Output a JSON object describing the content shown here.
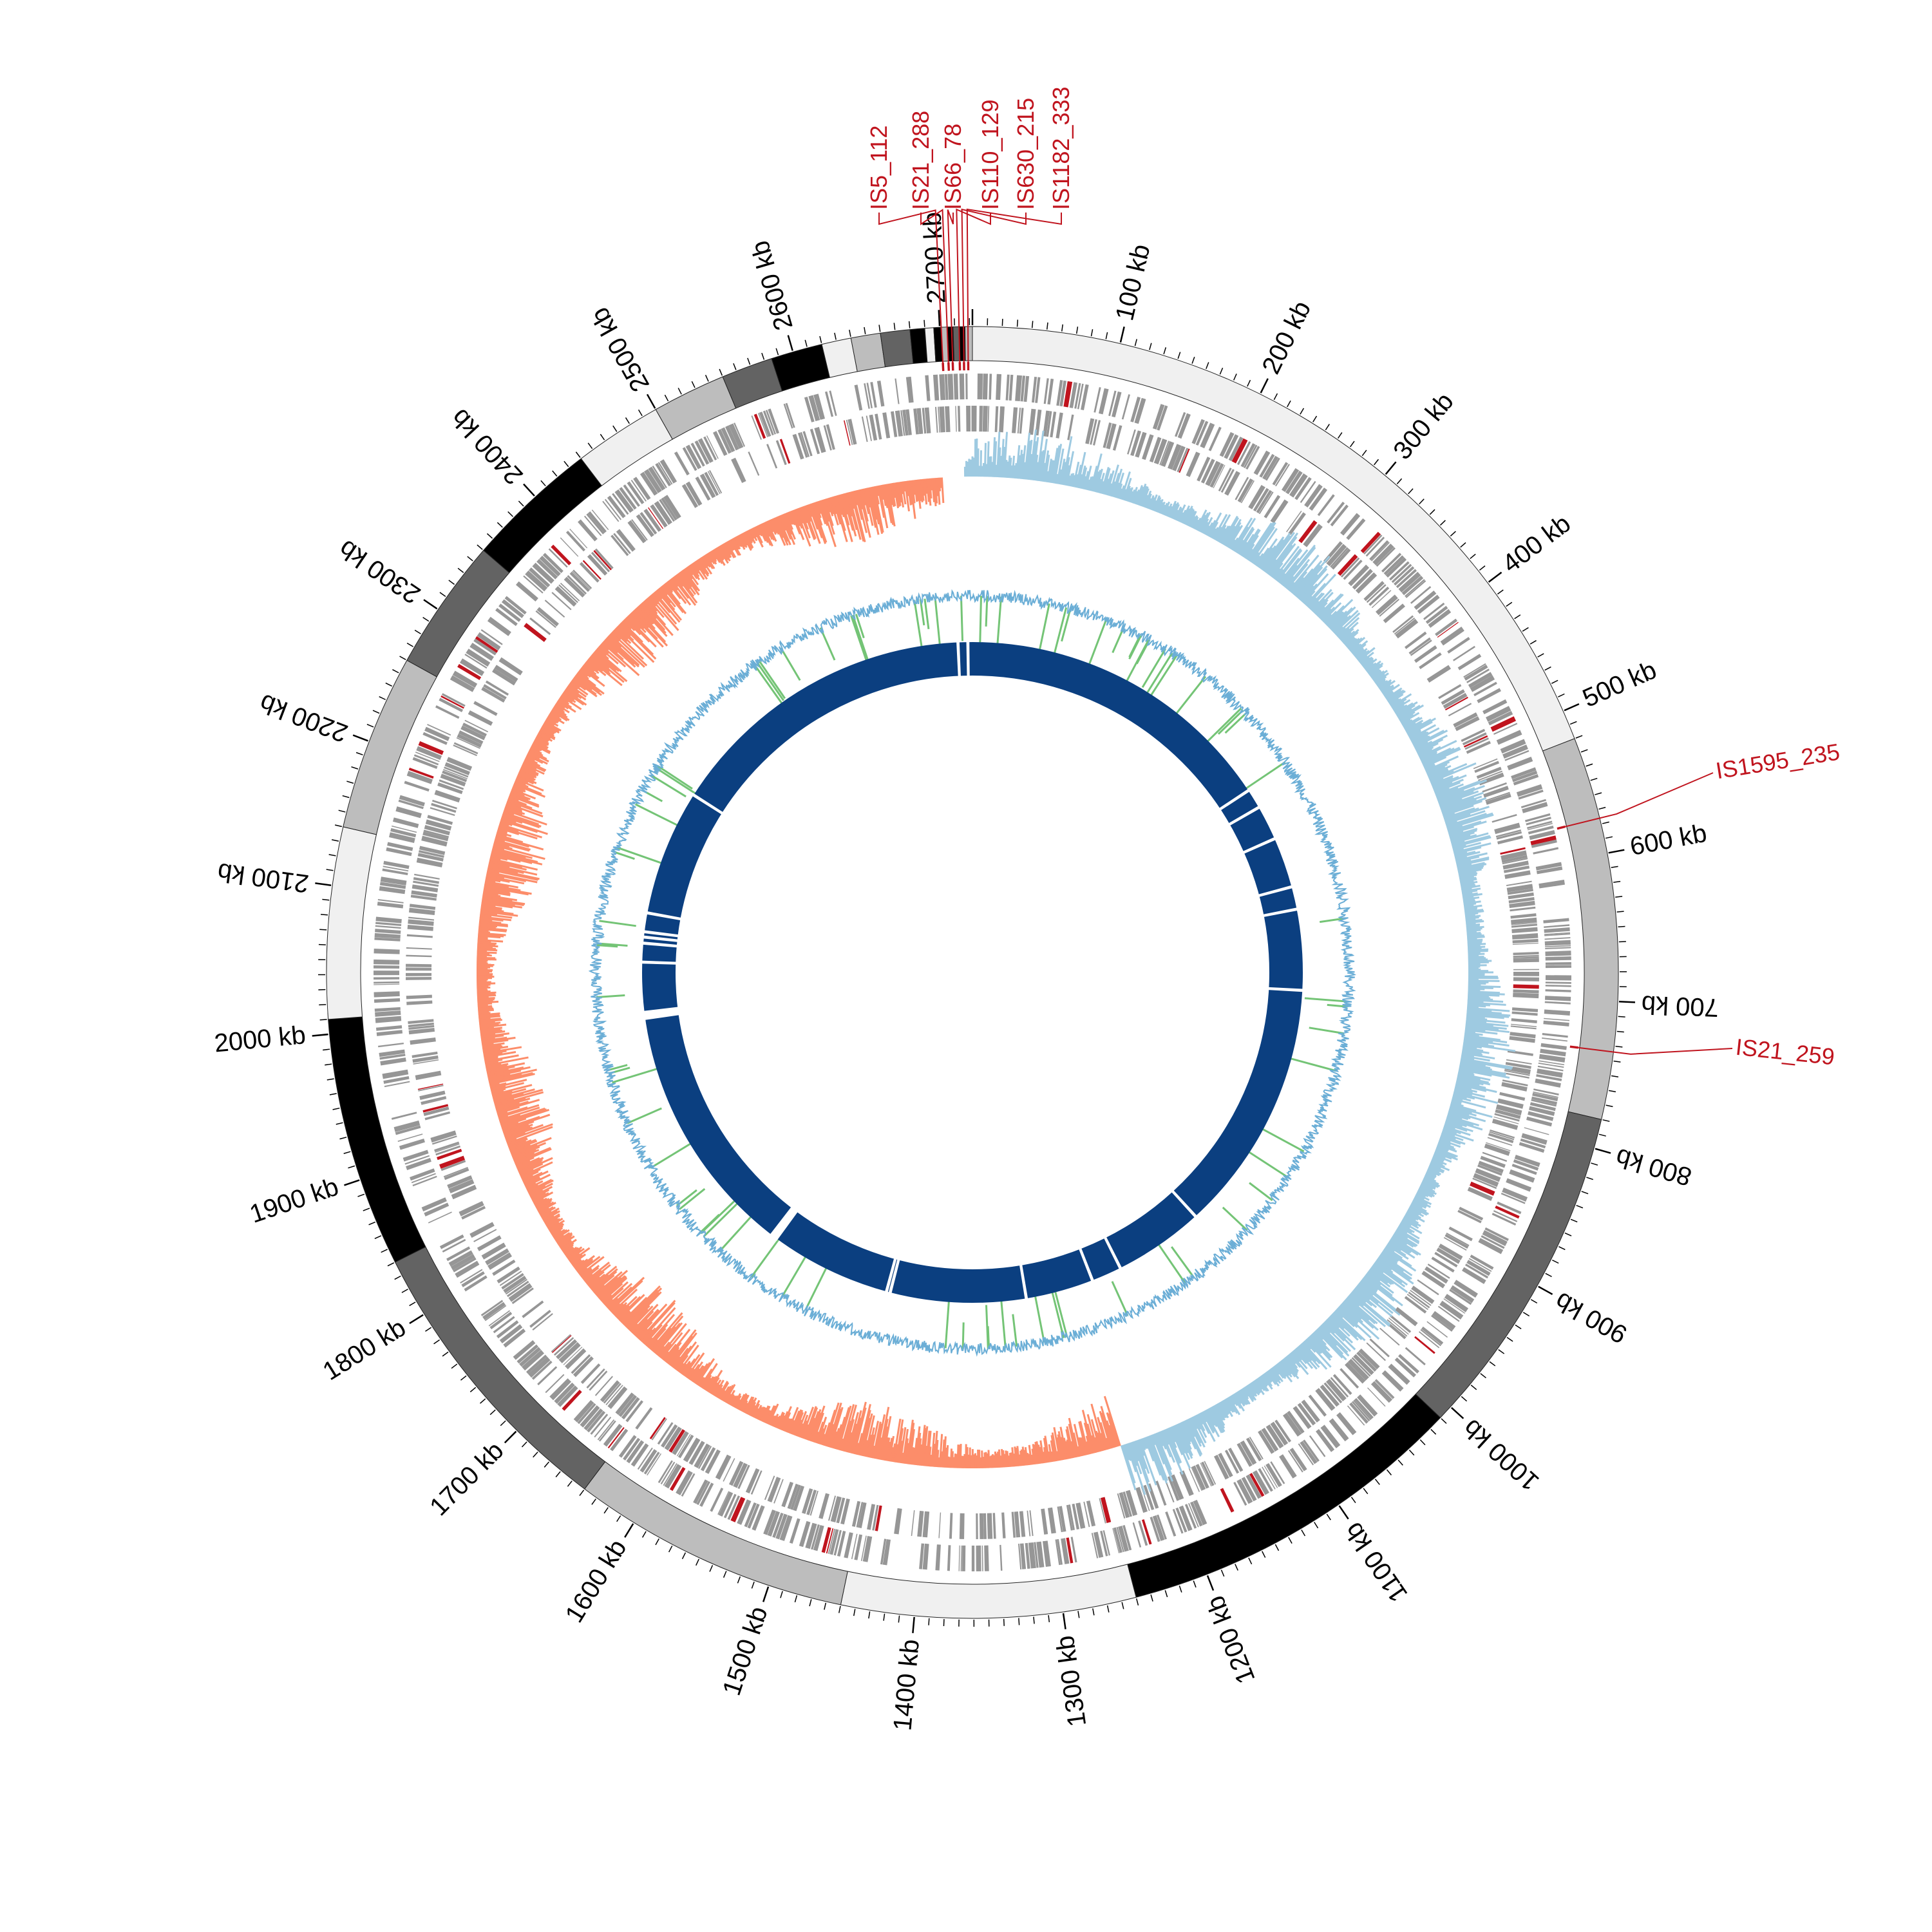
{
  "genome": {
    "length_kb": 2722,
    "tick_major_kb": 100,
    "tick_minor_kb": 10,
    "tick_unit": "kb"
  },
  "tick_labels": [
    "100 kb",
    "200 kb",
    "300 kb",
    "400 kb",
    "500 kb",
    "600 kb",
    "700 kb",
    "800 kb",
    "900 kb",
    "1000 kb",
    "1100 kb",
    "1200 kb",
    "1300 kb",
    "1400 kb",
    "1500 kb",
    "1600 kb",
    "1700 kb",
    "1800 kb",
    "1900 kb",
    "2000 kb",
    "2100 kb",
    "2200 kb",
    "2300 kb",
    "2400 kb",
    "2500 kb",
    "2600 kb",
    "2700 kb"
  ],
  "contig_blocks_kb": [
    {
      "start": 0,
      "end": 520,
      "tone": "#f0f0f0"
    },
    {
      "start": 520,
      "end": 780,
      "tone": "#bdbdbd"
    },
    {
      "start": 780,
      "end": 1010,
      "tone": "#636363"
    },
    {
      "start": 1010,
      "end": 1250,
      "tone": "#000000"
    },
    {
      "start": 1250,
      "end": 1450,
      "tone": "#f0f0f0"
    },
    {
      "start": 1450,
      "end": 1640,
      "tone": "#bdbdbd"
    },
    {
      "start": 1640,
      "end": 1840,
      "tone": "#636363"
    },
    {
      "start": 1840,
      "end": 2010,
      "tone": "#000000"
    },
    {
      "start": 2010,
      "end": 2140,
      "tone": "#f0f0f0"
    },
    {
      "start": 2140,
      "end": 2260,
      "tone": "#bdbdbd"
    },
    {
      "start": 2260,
      "end": 2350,
      "tone": "#636363"
    },
    {
      "start": 2350,
      "end": 2440,
      "tone": "#000000"
    },
    {
      "start": 2440,
      "end": 2500,
      "tone": "#f0f0f0"
    },
    {
      "start": 2500,
      "end": 2550,
      "tone": "#bdbdbd"
    },
    {
      "start": 2550,
      "end": 2585,
      "tone": "#636363"
    },
    {
      "start": 2585,
      "end": 2620,
      "tone": "#000000"
    },
    {
      "start": 2620,
      "end": 2640,
      "tone": "#f0f0f0"
    },
    {
      "start": 2640,
      "end": 2660,
      "tone": "#bdbdbd"
    },
    {
      "start": 2660,
      "end": 2680,
      "tone": "#636363"
    },
    {
      "start": 2680,
      "end": 2690,
      "tone": "#000000"
    },
    {
      "start": 2690,
      "end": 2696,
      "tone": "#f0f0f0"
    },
    {
      "start": 2696,
      "end": 2701,
      "tone": "#000000"
    },
    {
      "start": 2701,
      "end": 2705,
      "tone": "#bdbdbd"
    },
    {
      "start": 2705,
      "end": 2709,
      "tone": "#000000"
    },
    {
      "start": 2709,
      "end": 2713,
      "tone": "#636363"
    },
    {
      "start": 2713,
      "end": 2717,
      "tone": "#000000"
    },
    {
      "start": 2717,
      "end": 2722,
      "tone": "#bdbdbd"
    }
  ],
  "is_elements": [
    {
      "label": "IS5_112",
      "kb": 2701
    },
    {
      "label": "IS21_288",
      "kb": 2705
    },
    {
      "label": "IS66_78",
      "kb": 2708
    },
    {
      "label": "IS110_129",
      "kb": 2713
    },
    {
      "label": "IS630_215",
      "kb": 2716
    },
    {
      "label": "IS1182_333",
      "kb": 2719
    },
    {
      "label": "IS1595_235",
      "kb": 576
    },
    {
      "label": "IS21_259",
      "kb": 734
    }
  ],
  "gc_skew_negative_ranges_kb": [
    {
      "start": 1230,
      "end": 2700
    }
  ],
  "inner_ring_gaps_kb": [
    2703,
    2716,
    428,
    454,
    500,
    567,
    597,
    704,
    1040,
    1160,
    1200,
    1290,
    1470,
    1475,
    1640,
    1985,
    2055,
    2080,
    2088,
    2095,
    2120,
    2287
  ],
  "colors": {
    "is_red": "#c0141e",
    "gc_skew_positive": "#9ecae1",
    "gc_skew_negative": "#fc8d6a",
    "gc_content": "#74c476",
    "gc_content_line": "#6baed6",
    "gene_gray": "#969696",
    "inner_ring": "#0b3f80"
  }
}
